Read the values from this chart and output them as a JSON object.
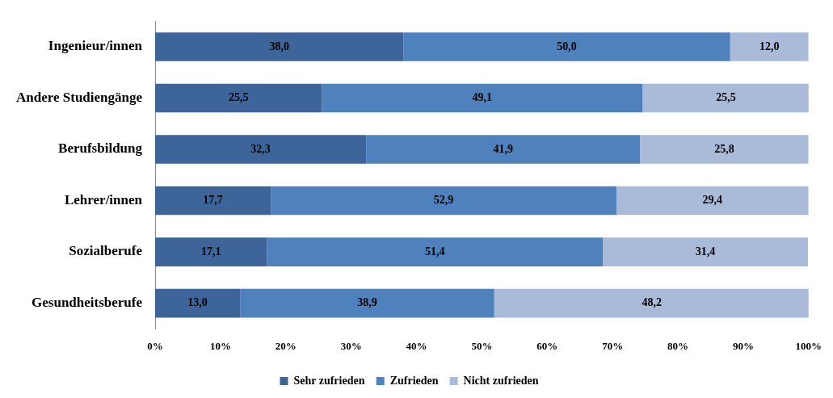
{
  "chart_data": {
    "type": "bar",
    "orientation": "horizontal",
    "stacked": true,
    "categories": [
      "Ingenieur/innen",
      "Andere Studiengänge",
      "Berufsbildung",
      "Lehrer/innen",
      "Sozialberufe",
      "Gesundheitsberufe"
    ],
    "series": [
      {
        "name": "Sehr zufrieden",
        "color": "#3d6599",
        "values": [
          38.0,
          25.5,
          32.3,
          17.7,
          17.1,
          13.0
        ],
        "value_labels": [
          "38,0",
          "25,5",
          "32,3",
          "17,7",
          "17,1",
          "13,0"
        ]
      },
      {
        "name": "Zufrieden",
        "color": "#4f81bd",
        "values": [
          50.0,
          49.1,
          41.9,
          52.9,
          51.4,
          38.9
        ],
        "value_labels": [
          "50,0",
          "49,1",
          "41,9",
          "52,9",
          "51,4",
          "38,9"
        ]
      },
      {
        "name": "Nicht zufrieden",
        "color": "#aabad9",
        "values": [
          12.0,
          25.5,
          25.8,
          29.4,
          31.4,
          48.2
        ],
        "value_labels": [
          "12,0",
          "25,5",
          "25,8",
          "29,4",
          "31,4",
          "48,2"
        ]
      }
    ],
    "xlim": [
      0,
      100
    ],
    "xticks": [
      {
        "value": 0,
        "label": "0%"
      },
      {
        "value": 10,
        "label": "10%"
      },
      {
        "value": 20,
        "label": "20%"
      },
      {
        "value": 30,
        "label": "30%"
      },
      {
        "value": 40,
        "label": "40%"
      },
      {
        "value": 50,
        "label": "50%"
      },
      {
        "value": 60,
        "label": "60%"
      },
      {
        "value": 70,
        "label": "70%"
      },
      {
        "value": 80,
        "label": "80%"
      },
      {
        "value": 90,
        "label": "90%"
      },
      {
        "value": 100,
        "label": "100%"
      }
    ],
    "legend": "bottom",
    "grid": false
  }
}
